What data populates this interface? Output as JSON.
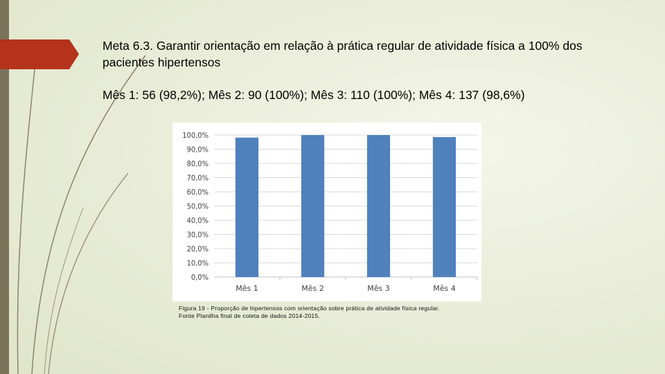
{
  "slide": {
    "title": "Meta 6.3. Garantir orientação em relação à prática regular de atividade física a 100% dos pacientes hipertensos",
    "subtitle": "Mês 1: 56 (98,2%); Mês 2: 90 (100%); Mês 3: 110 (100%); Mês 4: 137 (98,6%)",
    "caption_line1": "Figura 19 - Proporção de hipertensos com orientação sobre prática de atividade física regular.",
    "caption_line2": "Fonte Planilha final de coleta de dados 2014-2015.",
    "accent_color": "#b5331b",
    "bar_color": "#4f81bd"
  },
  "chart_data": {
    "type": "bar",
    "categories": [
      "Mês 1",
      "Mês 2",
      "Mês 3",
      "Mês 4"
    ],
    "values": [
      98.2,
      100.0,
      100.0,
      98.6
    ],
    "yticks": [
      "0,0%",
      "10,0%",
      "20,0%",
      "30,0%",
      "40,0%",
      "50,0%",
      "60,0%",
      "70,0%",
      "80,0%",
      "90,0%",
      "100,0%"
    ],
    "ylim": [
      0,
      100
    ],
    "grid": true,
    "legend": "none"
  }
}
